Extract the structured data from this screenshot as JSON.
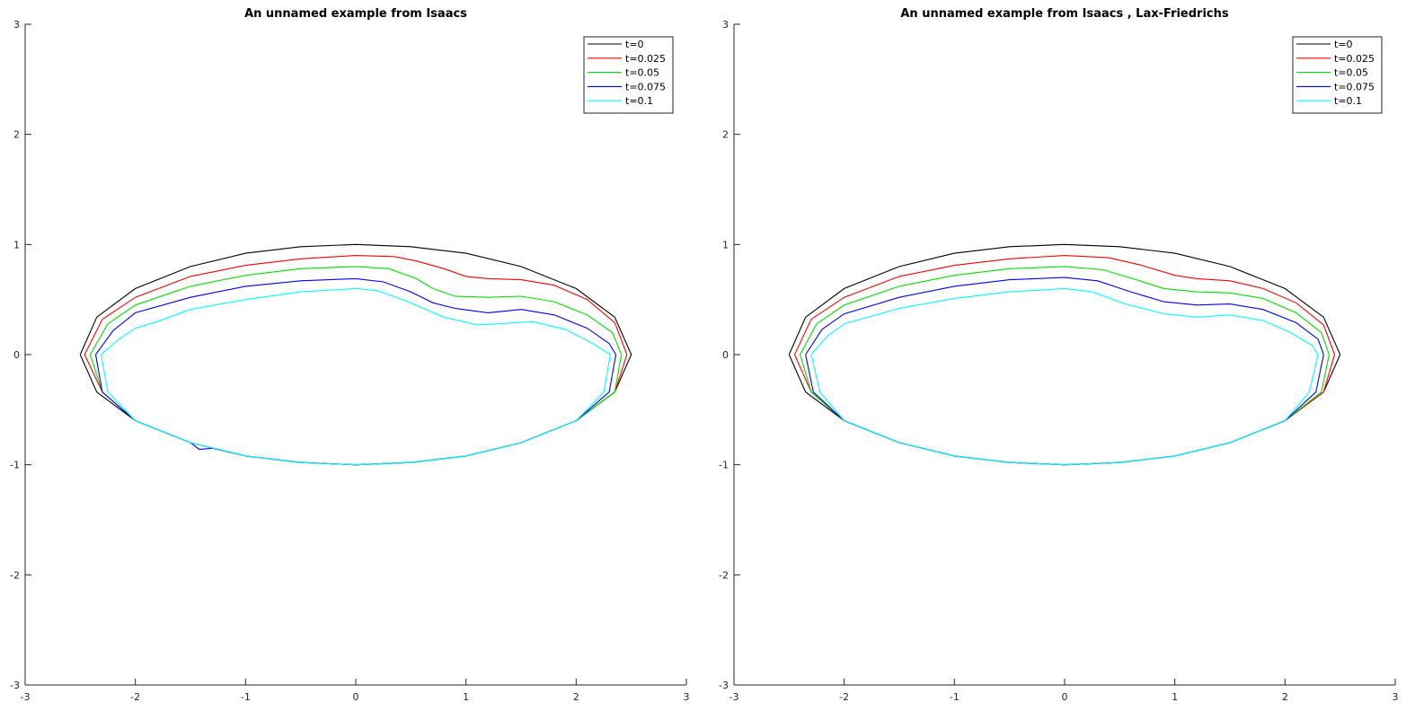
{
  "chart_data": [
    {
      "type": "line",
      "title": "An unnamed example from Isaacs",
      "xlim": [
        -3,
        3
      ],
      "ylim": [
        -3,
        3
      ],
      "xticks": [
        -3,
        -2,
        -1,
        0,
        1,
        2,
        3
      ],
      "yticks": [
        -3,
        -2,
        -1,
        0,
        1,
        2,
        3
      ],
      "grid": false,
      "legend_position": "top-right",
      "series": [
        {
          "name": "t=0",
          "color": "#000000",
          "x": [
            -2.5,
            -2.35,
            -2.0,
            -1.5,
            -1.0,
            -0.5,
            0.0,
            0.5,
            1.0,
            1.5,
            2.0,
            2.35,
            2.5,
            2.35,
            2.0,
            1.5,
            1.0,
            0.5,
            0.0,
            -0.5,
            -1.0,
            -1.5,
            -2.0,
            -2.35,
            -2.5
          ],
          "y": [
            0.0,
            0.34,
            0.6,
            0.8,
            0.92,
            0.98,
            1.0,
            0.98,
            0.92,
            0.8,
            0.6,
            0.34,
            0.0,
            -0.34,
            -0.6,
            -0.8,
            -0.92,
            -0.98,
            -1.0,
            -0.98,
            -0.92,
            -0.8,
            -0.6,
            -0.34,
            0.0
          ]
        },
        {
          "name": "t=0.025",
          "color": "#ff0000",
          "x": [
            -2.46,
            -2.3,
            -2.0,
            -1.5,
            -1.0,
            -0.5,
            0.0,
            0.35,
            0.55,
            0.8,
            1.0,
            1.2,
            1.5,
            1.8,
            2.1,
            2.35,
            2.46,
            2.35,
            2.0,
            1.5,
            1.0,
            0.5,
            0.0,
            -0.5,
            -1.0,
            -1.5,
            -2.0,
            -2.3,
            -2.46
          ],
          "y": [
            0.0,
            0.32,
            0.52,
            0.71,
            0.81,
            0.87,
            0.9,
            0.89,
            0.85,
            0.78,
            0.71,
            0.69,
            0.68,
            0.63,
            0.5,
            0.29,
            0.0,
            -0.34,
            -0.6,
            -0.8,
            -0.92,
            -0.98,
            -1.0,
            -0.98,
            -0.92,
            -0.8,
            -0.6,
            -0.34,
            0.0
          ]
        },
        {
          "name": "t=0.05",
          "color": "#00e000",
          "x": [
            -2.41,
            -2.25,
            -2.0,
            -1.5,
            -1.0,
            -0.5,
            0.0,
            0.3,
            0.55,
            0.7,
            0.9,
            1.2,
            1.5,
            1.8,
            2.1,
            2.33,
            2.41,
            2.35,
            2.0,
            1.5,
            1.0,
            0.5,
            0.0,
            -0.5,
            -1.0,
            -1.5,
            -2.0,
            -2.3,
            -2.41
          ],
          "y": [
            0.0,
            0.28,
            0.45,
            0.62,
            0.72,
            0.78,
            0.8,
            0.78,
            0.69,
            0.6,
            0.53,
            0.52,
            0.53,
            0.48,
            0.36,
            0.2,
            0.0,
            -0.34,
            -0.6,
            -0.8,
            -0.92,
            -0.98,
            -1.0,
            -0.98,
            -0.92,
            -0.8,
            -0.6,
            -0.34,
            0.0
          ]
        },
        {
          "name": "t=0.075",
          "color": "#0000ff",
          "x": [
            -2.36,
            -2.2,
            -2.0,
            -1.5,
            -1.0,
            -0.5,
            0.0,
            0.25,
            0.5,
            0.7,
            0.9,
            1.2,
            1.5,
            1.8,
            2.1,
            2.3,
            2.36,
            2.3,
            2.0,
            1.5,
            1.0,
            0.5,
            0.0,
            -0.5,
            -1.0,
            -1.3,
            -1.42,
            -1.5,
            -2.0,
            -2.3,
            -2.36
          ],
          "y": [
            0.0,
            0.22,
            0.38,
            0.52,
            0.62,
            0.67,
            0.69,
            0.66,
            0.57,
            0.47,
            0.42,
            0.38,
            0.41,
            0.36,
            0.24,
            0.1,
            0.0,
            -0.34,
            -0.6,
            -0.8,
            -0.92,
            -0.98,
            -1.0,
            -0.98,
            -0.92,
            -0.85,
            -0.86,
            -0.8,
            -0.6,
            -0.34,
            0.0
          ]
        },
        {
          "name": "t=0.1",
          "color": "#00ffff",
          "x": [
            -2.31,
            -2.15,
            -2.0,
            -1.8,
            -1.5,
            -1.0,
            -0.5,
            0.0,
            0.2,
            0.45,
            0.8,
            1.1,
            1.3,
            1.6,
            1.9,
            2.15,
            2.31,
            2.25,
            2.0,
            1.5,
            1.0,
            0.5,
            0.0,
            -0.5,
            -1.0,
            -1.5,
            -2.0,
            -2.25,
            -2.31
          ],
          "y": [
            0.0,
            0.14,
            0.24,
            0.3,
            0.41,
            0.5,
            0.57,
            0.6,
            0.58,
            0.49,
            0.34,
            0.27,
            0.28,
            0.3,
            0.23,
            0.1,
            0.0,
            -0.34,
            -0.6,
            -0.8,
            -0.92,
            -0.98,
            -1.0,
            -0.98,
            -0.92,
            -0.8,
            -0.6,
            -0.34,
            0.0
          ]
        }
      ]
    },
    {
      "type": "line",
      "title": "An unnamed example from Isaacs , Lax-Friedrichs",
      "xlim": [
        -3,
        3
      ],
      "ylim": [
        -3,
        3
      ],
      "xticks": [
        -3,
        -2,
        -1,
        0,
        1,
        2,
        3
      ],
      "yticks": [
        -3,
        -2,
        -1,
        0,
        1,
        2,
        3
      ],
      "grid": false,
      "legend_position": "top-right",
      "series": [
        {
          "name": "t=0",
          "color": "#000000",
          "x": [
            -2.5,
            -2.35,
            -2.0,
            -1.5,
            -1.0,
            -0.5,
            0.0,
            0.5,
            1.0,
            1.5,
            2.0,
            2.35,
            2.5,
            2.35,
            2.0,
            1.5,
            1.0,
            0.5,
            0.0,
            -0.5,
            -1.0,
            -1.5,
            -2.0,
            -2.35,
            -2.5
          ],
          "y": [
            0.0,
            0.34,
            0.6,
            0.8,
            0.92,
            0.98,
            1.0,
            0.98,
            0.92,
            0.8,
            0.6,
            0.34,
            0.0,
            -0.34,
            -0.6,
            -0.8,
            -0.92,
            -0.98,
            -1.0,
            -0.98,
            -0.92,
            -0.8,
            -0.6,
            -0.34,
            0.0
          ]
        },
        {
          "name": "t=0.025",
          "color": "#ff0000",
          "x": [
            -2.45,
            -2.3,
            -2.0,
            -1.5,
            -1.0,
            -0.5,
            0.0,
            0.4,
            0.7,
            1.0,
            1.2,
            1.5,
            1.8,
            2.1,
            2.35,
            2.45,
            2.35,
            2.0,
            1.5,
            1.0,
            0.5,
            0.0,
            -0.5,
            -1.0,
            -1.5,
            -2.0,
            -2.3,
            -2.45
          ],
          "y": [
            0.0,
            0.32,
            0.52,
            0.71,
            0.81,
            0.87,
            0.9,
            0.88,
            0.81,
            0.72,
            0.69,
            0.67,
            0.6,
            0.47,
            0.27,
            0.0,
            -0.34,
            -0.6,
            -0.8,
            -0.92,
            -0.98,
            -1.0,
            -0.98,
            -0.92,
            -0.8,
            -0.6,
            -0.34,
            0.0
          ]
        },
        {
          "name": "t=0.05",
          "color": "#00e000",
          "x": [
            -2.4,
            -2.25,
            -2.0,
            -1.5,
            -1.0,
            -0.5,
            0.0,
            0.35,
            0.65,
            0.9,
            1.2,
            1.5,
            1.8,
            2.1,
            2.33,
            2.4,
            2.33,
            2.0,
            1.5,
            1.0,
            0.5,
            0.0,
            -0.5,
            -1.0,
            -1.5,
            -2.0,
            -2.3,
            -2.4
          ],
          "y": [
            0.0,
            0.28,
            0.45,
            0.62,
            0.72,
            0.78,
            0.8,
            0.77,
            0.68,
            0.6,
            0.57,
            0.56,
            0.51,
            0.38,
            0.2,
            0.0,
            -0.34,
            -0.6,
            -0.8,
            -0.92,
            -0.98,
            -1.0,
            -0.98,
            -0.92,
            -0.8,
            -0.6,
            -0.34,
            0.0
          ]
        },
        {
          "name": "t=0.075",
          "color": "#0000ff",
          "x": [
            -2.35,
            -2.2,
            -2.0,
            -1.5,
            -1.0,
            -0.5,
            0.0,
            0.3,
            0.6,
            0.9,
            1.2,
            1.5,
            1.8,
            2.1,
            2.3,
            2.35,
            2.28,
            2.0,
            1.5,
            1.0,
            0.5,
            0.0,
            -0.5,
            -1.0,
            -1.5,
            -2.0,
            -2.28,
            -2.35
          ],
          "y": [
            0.0,
            0.23,
            0.37,
            0.52,
            0.62,
            0.68,
            0.7,
            0.67,
            0.57,
            0.48,
            0.45,
            0.46,
            0.41,
            0.29,
            0.14,
            0.0,
            -0.34,
            -0.6,
            -0.8,
            -0.92,
            -0.98,
            -1.0,
            -0.98,
            -0.92,
            -0.8,
            -0.6,
            -0.34,
            0.0
          ]
        },
        {
          "name": "t=0.1",
          "color": "#00ffff",
          "x": [
            -2.3,
            -2.15,
            -2.0,
            -1.5,
            -1.0,
            -0.5,
            0.0,
            0.25,
            0.55,
            0.9,
            1.2,
            1.5,
            1.8,
            2.05,
            2.25,
            2.3,
            2.22,
            2.0,
            1.5,
            1.0,
            0.5,
            0.0,
            -0.5,
            -1.0,
            -1.5,
            -2.0,
            -2.22,
            -2.3
          ],
          "y": [
            0.0,
            0.17,
            0.28,
            0.42,
            0.51,
            0.57,
            0.6,
            0.57,
            0.46,
            0.37,
            0.34,
            0.36,
            0.31,
            0.2,
            0.08,
            0.0,
            -0.34,
            -0.6,
            -0.8,
            -0.92,
            -0.98,
            -1.0,
            -0.98,
            -0.92,
            -0.8,
            -0.6,
            -0.34,
            0.0
          ]
        }
      ]
    }
  ]
}
